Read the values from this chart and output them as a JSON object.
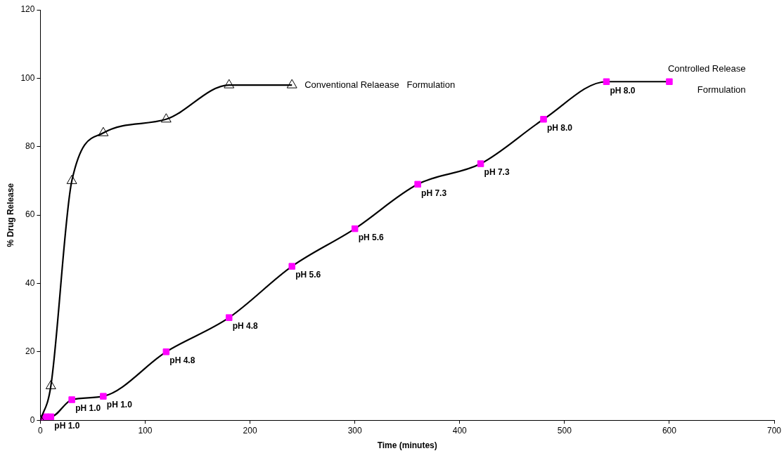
{
  "chart_data": {
    "type": "line",
    "xlabel": "Time (minutes)",
    "ylabel": "% Drug Release",
    "xlim": [
      0,
      700
    ],
    "xticks": [
      0,
      100,
      200,
      300,
      400,
      500,
      600,
      700
    ],
    "ylim": [
      0,
      120
    ],
    "yticks": [
      0,
      20,
      40,
      60,
      80,
      100,
      120
    ],
    "grid": false,
    "legend": false,
    "line_style": "solid",
    "series": [
      {
        "name": "Conventional Relaease   Formulation",
        "color": "#000000",
        "marker": "triangle",
        "x": [
          0,
          10,
          30,
          60,
          120,
          180,
          240
        ],
        "values": [
          0,
          10,
          70,
          84,
          88,
          98,
          98
        ]
      },
      {
        "name": "Controlled Release Formulation",
        "color": "#000000",
        "colors": [
          "#ff00ff",
          "#ff00ff",
          "#ff00ff",
          "#ff00ff",
          "#ff00ff",
          "#ff00ff",
          "#ff00ff",
          "#ff00ff",
          "#ff00ff",
          "#ff00ff",
          "#ff00ff",
          "#ff00ff",
          "#ff00ff",
          "#ff00ff"
        ],
        "marker": "square",
        "x": [
          0,
          5,
          10,
          30,
          60,
          120,
          180,
          240,
          300,
          360,
          420,
          480,
          540,
          600
        ],
        "values": [
          0,
          1,
          1,
          6,
          7,
          20,
          30,
          45,
          56,
          69,
          75,
          88,
          99,
          99
        ]
      }
    ],
    "annotations": [
      {
        "text": "pH 1.0",
        "x": 10,
        "y": 1
      },
      {
        "text": "pH 1.0",
        "x": 30,
        "y": 6
      },
      {
        "text": "pH 1.0",
        "x": 60,
        "y": 7
      },
      {
        "text": "pH 4.8",
        "x": 120,
        "y": 20
      },
      {
        "text": "pH 4.8",
        "x": 180,
        "y": 30
      },
      {
        "text": "pH 5.6",
        "x": 240,
        "y": 45
      },
      {
        "text": "pH 5.6",
        "x": 300,
        "y": 56
      },
      {
        "text": "pH 7.3",
        "x": 360,
        "y": 69
      },
      {
        "text": "pH 7.3",
        "x": 420,
        "y": 75
      },
      {
        "text": "pH 8.0",
        "x": 480,
        "y": 88
      },
      {
        "text": "pH 8.0",
        "x": 540,
        "y": 99
      }
    ]
  }
}
